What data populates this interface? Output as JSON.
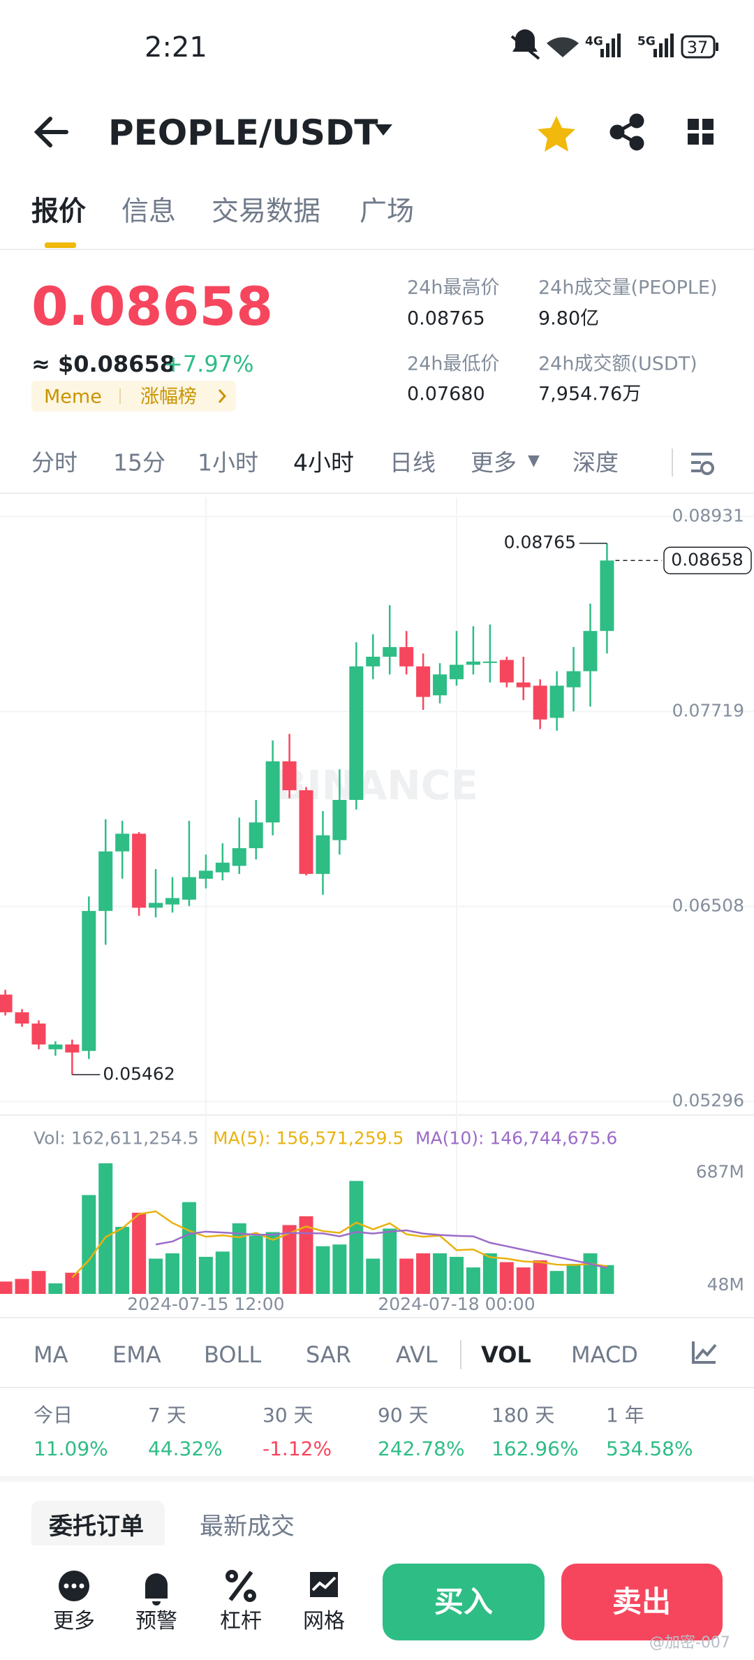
{
  "status_bar": {
    "time": "2:21",
    "battery": "37",
    "network_1": "4G",
    "network_2": "5G"
  },
  "header": {
    "title": "PEOPLE/USDT"
  },
  "tabs": [
    "报价",
    "信息",
    "交易数据",
    "广场"
  ],
  "price": {
    "last": "0.08658",
    "usd": "≈ $0.08658",
    "change": "+7.97%",
    "tags": [
      "Meme",
      "涨幅榜"
    ]
  },
  "stats": [
    {
      "label": "24h最高价",
      "value": "0.08765"
    },
    {
      "label": "24h成交量(PEOPLE)",
      "value": "9.80亿"
    },
    {
      "label": "24h最低价",
      "value": "0.07680"
    },
    {
      "label": "24h成交额(USDT)",
      "value": "7,954.76万"
    }
  ],
  "intervals": [
    "分时",
    "15分",
    "1小时",
    "4小时",
    "日线",
    "更多",
    "深度"
  ],
  "chart_data": {
    "type": "candlestick",
    "categories": [
      null,
      null,
      null,
      null,
      null,
      null,
      null,
      null,
      null,
      null,
      null,
      null,
      "2024-07-15 12:00",
      null,
      null,
      null,
      null,
      null,
      null,
      null,
      null,
      null,
      null,
      null,
      null,
      null,
      null,
      "2024-07-18 00:00",
      null,
      null,
      null,
      null,
      null,
      null,
      null,
      null,
      null
    ],
    "open": [
      0.0596,
      0.0585,
      0.0578,
      0.0562,
      0.0565,
      0.0561,
      0.0648,
      0.0685,
      0.0696,
      0.065,
      0.0652,
      0.0655,
      0.0668,
      0.0672,
      0.0676,
      0.0687,
      0.0703,
      0.0741,
      0.0723,
      0.0671,
      0.0692,
      0.0717,
      0.08,
      0.0806,
      0.0812,
      0.08,
      0.0782,
      0.0792,
      0.0801,
      0.0803,
      0.0804,
      0.079,
      0.0788,
      0.0768,
      0.0787,
      0.0797,
      0.0822
    ],
    "high": [
      0.0599,
      0.0587,
      0.058,
      0.0567,
      0.0568,
      0.0657,
      0.0705,
      0.0704,
      0.0697,
      0.0674,
      0.0669,
      0.0704,
      0.0683,
      0.069,
      0.0706,
      0.0717,
      0.0754,
      0.0758,
      0.0725,
      0.071,
      0.0736,
      0.0815,
      0.082,
      0.0838,
      0.0822,
      0.0808,
      0.0802,
      0.0822,
      0.0825,
      0.0826,
      0.0806,
      0.0806,
      0.0792,
      0.0797,
      0.0812,
      0.0839,
      0.08765
    ],
    "low": [
      0.0583,
      0.0576,
      0.0562,
      0.0558,
      0.05462,
      0.0556,
      0.0627,
      0.0668,
      0.0645,
      0.0644,
      0.0647,
      0.0651,
      0.0662,
      0.0667,
      0.0671,
      0.068,
      0.0695,
      0.0718,
      0.067,
      0.0658,
      0.0683,
      0.0711,
      0.0792,
      0.0795,
      0.0795,
      0.0773,
      0.0777,
      0.0788,
      0.0795,
      0.079,
      0.0787,
      0.0779,
      0.0761,
      0.076,
      0.0772,
      0.0775,
      0.0808
    ],
    "close": [
      0.0585,
      0.0578,
      0.0565,
      0.0565,
      0.056,
      0.0648,
      0.0685,
      0.0696,
      0.065,
      0.0653,
      0.0656,
      0.0669,
      0.0673,
      0.0678,
      0.0687,
      0.0703,
      0.0741,
      0.0723,
      0.0671,
      0.0695,
      0.0717,
      0.08,
      0.0806,
      0.0812,
      0.08,
      0.0781,
      0.0795,
      0.0801,
      0.0803,
      0.0803,
      0.079,
      0.0787,
      0.0767,
      0.0788,
      0.0797,
      0.0822,
      0.08658
    ],
    "ylim": [
      0.0522,
      0.0905
    ],
    "yticks": [
      0.05296,
      0.06508,
      0.07719,
      0.08931
    ],
    "grid": true,
    "up_color": "#2ebd85",
    "down_color": "#f6465d",
    "high_label": 0.08765,
    "low_label": 0.05462,
    "last_price": 0.08658,
    "watermark": "BINANCE",
    "volume": {
      "values": [
        70,
        85,
        130,
        60,
        120,
        560,
        740,
        380,
        460,
        200,
        230,
        520,
        210,
        240,
        400,
        330,
        350,
        390,
        440,
        270,
        280,
        640,
        200,
        370,
        200,
        230,
        230,
        210,
        150,
        230,
        180,
        150,
        190,
        130,
        170,
        230,
        163
      ],
      "ylim": [
        0,
        760
      ],
      "yticks": [
        {
          "value": 48,
          "label": "48M"
        },
        {
          "value": 687,
          "label": "687M"
        }
      ],
      "legend": {
        "vol": "Vol: 162,611,254.5",
        "ma5": "MA(5): 156,571,259.5",
        "ma10": "MA(10): 146,744,675.6"
      },
      "series": [
        {
          "color": "#e8b20e",
          "values": [
            null,
            null,
            null,
            null,
            93,
            191,
            322,
            372,
            452,
            468,
            402,
            358,
            324,
            332,
            320,
            346,
            306,
            344,
            382,
            356,
            346,
            404,
            366,
            400,
            338,
            324,
            330,
            248,
            252,
            208,
            200,
            184,
            180,
            166,
            164,
            170,
            157
          ]
        },
        {
          "color": "#9b6bc9",
          "values": [
            null,
            null,
            null,
            null,
            null,
            null,
            null,
            null,
            null,
            280,
            297,
            340,
            353,
            348,
            342,
            335,
            336,
            346,
            344,
            343,
            326,
            351,
            342,
            353,
            360,
            342,
            334,
            329,
            326,
            290,
            270,
            250,
            230,
            210,
            190,
            170,
            147
          ]
        }
      ]
    }
  },
  "indicators": [
    "MA",
    "EMA",
    "BOLL",
    "SAR",
    "AVL",
    "VOL",
    "MACD"
  ],
  "performance": [
    {
      "label": "今日",
      "value": "11.09%"
    },
    {
      "label": "7 天",
      "value": "44.32%"
    },
    {
      "label": "30 天",
      "value": "-1.12%"
    },
    {
      "label": "90 天",
      "value": "242.78%"
    },
    {
      "label": "180 天",
      "value": "162.96%"
    },
    {
      "label": "1 年",
      "value": "534.58%"
    }
  ],
  "order_tabs": [
    "委托订单",
    "最新成交"
  ],
  "nav": [
    "更多",
    "预警",
    "杠杆",
    "网格"
  ],
  "actions": {
    "buy": "买入",
    "sell": "卖出"
  },
  "watermark": "@加密-007"
}
